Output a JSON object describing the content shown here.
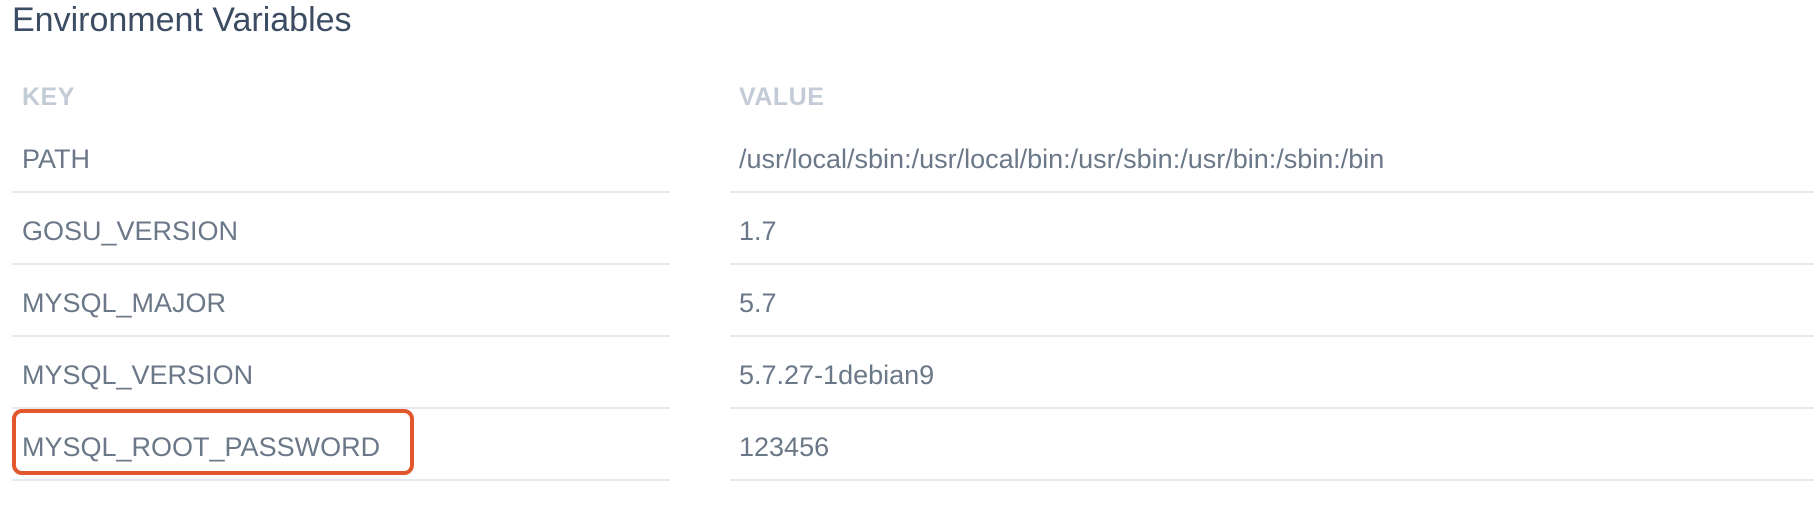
{
  "section": {
    "title": "Environment Variables"
  },
  "table": {
    "headers": {
      "key": "KEY",
      "value": "VALUE"
    },
    "rows": [
      {
        "key": "PATH",
        "value": "/usr/local/sbin:/usr/local/bin:/usr/sbin:/usr/bin:/sbin:/bin"
      },
      {
        "key": "GOSU_VERSION",
        "value": "1.7"
      },
      {
        "key": "MYSQL_MAJOR",
        "value": "5.7"
      },
      {
        "key": "MYSQL_VERSION",
        "value": "5.7.27-1debian9"
      },
      {
        "key": "MYSQL_ROOT_PASSWORD",
        "value": "123456"
      }
    ]
  },
  "annotation": {
    "highlighted_row": 4,
    "color": "#e2572b"
  }
}
